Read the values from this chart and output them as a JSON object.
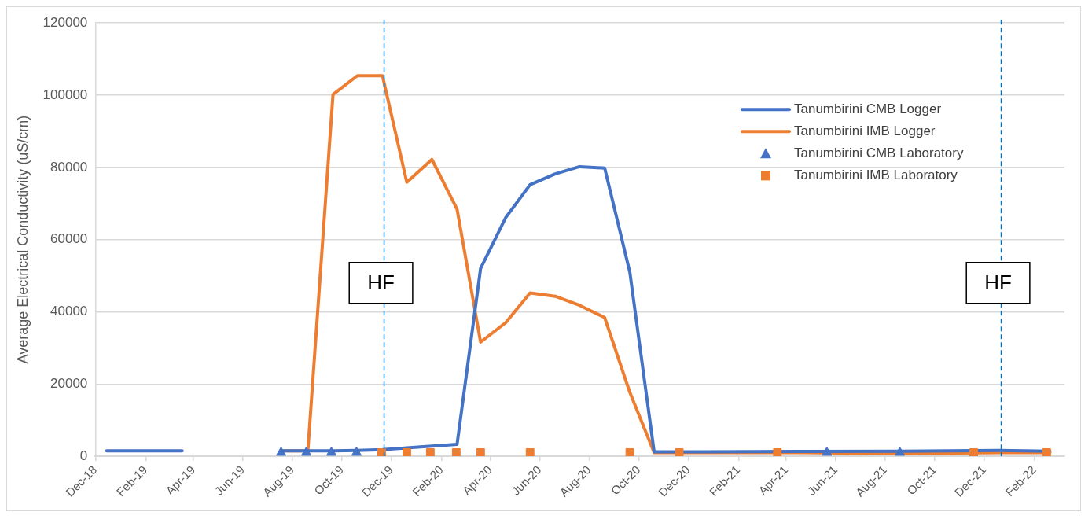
{
  "chart_data": {
    "type": "line",
    "ylabel": "Average Electrical Conductivity (uS/cm)",
    "xlim": [
      "2018-12-01",
      "2022-03-10"
    ],
    "ylim": [
      0,
      120000
    ],
    "yticks": [
      0,
      20000,
      40000,
      60000,
      80000,
      100000,
      120000
    ],
    "xticks": [
      {
        "value": "2018-12-01",
        "label": "Dec-18"
      },
      {
        "value": "2019-02-01",
        "label": "Feb-19"
      },
      {
        "value": "2019-04-01",
        "label": "Apr-19"
      },
      {
        "value": "2019-06-01",
        "label": "Jun-19"
      },
      {
        "value": "2019-08-01",
        "label": "Aug-19"
      },
      {
        "value": "2019-10-01",
        "label": "Oct-19"
      },
      {
        "value": "2019-12-01",
        "label": "Dec-19"
      },
      {
        "value": "2020-02-01",
        "label": "Feb-20"
      },
      {
        "value": "2020-04-01",
        "label": "Apr-20"
      },
      {
        "value": "2020-06-01",
        "label": "Jun-20"
      },
      {
        "value": "2020-08-01",
        "label": "Aug-20"
      },
      {
        "value": "2020-10-01",
        "label": "Oct-20"
      },
      {
        "value": "2020-12-01",
        "label": "Dec-20"
      },
      {
        "value": "2021-02-01",
        "label": "Feb-21"
      },
      {
        "value": "2021-04-01",
        "label": "Apr-21"
      },
      {
        "value": "2021-06-01",
        "label": "Jun-21"
      },
      {
        "value": "2021-08-01",
        "label": "Aug-21"
      },
      {
        "value": "2021-10-01",
        "label": "Oct-21"
      },
      {
        "value": "2021-12-01",
        "label": "Dec-21"
      },
      {
        "value": "2022-02-01",
        "label": "Feb-22"
      }
    ],
    "grid": "y",
    "legend": "top right",
    "series": [
      {
        "name": "Tanumbirini CMB Logger",
        "type": "line",
        "marker": "none",
        "line_style": "solid",
        "color": "#4472c4",
        "x": [
          "2018-12-15",
          "2019-01-15",
          "2019-02-15",
          "2019-03-18",
          "2019-05-20",
          "2019-07-20",
          "2019-08-20",
          "2019-09-20",
          "2019-10-20",
          "2019-11-20",
          "2019-12-20",
          "2020-01-20",
          "2020-02-20",
          "2020-03-20",
          "2020-04-20",
          "2020-05-20",
          "2020-06-20",
          "2020-07-20",
          "2020-08-20",
          "2020-09-20",
          "2020-10-20",
          "2020-12-20",
          "2021-04-20",
          "2021-08-20",
          "2021-12-20",
          "2022-02-20"
        ],
        "values": [
          1500,
          1500,
          1500,
          1500,
          null,
          1500,
          1500,
          1500,
          1600,
          1800,
          2300,
          2800,
          3300,
          52000,
          66100,
          75200,
          78200,
          80200,
          79800,
          51000,
          1200,
          1200,
          1300,
          1400,
          1600,
          1400
        ]
      },
      {
        "name": "Tanumbirini IMB Logger",
        "type": "line",
        "marker": "none",
        "line_style": "solid",
        "color": "#ed7d31",
        "x": [
          "2019-07-20",
          "2019-08-20",
          "2019-09-20",
          "2019-10-20",
          "2019-11-20",
          "2019-12-20",
          "2020-01-20",
          "2020-02-20",
          "2020-03-20",
          "2020-04-20",
          "2020-05-20",
          "2020-06-20",
          "2020-07-20",
          "2020-08-20",
          "2020-09-20",
          "2020-10-20",
          "2020-12-20",
          "2021-04-20",
          "2021-08-20",
          "2021-12-20",
          "2022-02-20"
        ],
        "values": [
          1500,
          1500,
          100200,
          105400,
          105400,
          75900,
          82200,
          68400,
          31600,
          37000,
          45200,
          44300,
          41800,
          38400,
          17700,
          1000,
          1000,
          1000,
          700,
          1000,
          1000
        ]
      },
      {
        "name": "Tanumbirini CMB Laboratory",
        "type": "scatter",
        "marker": "triangle",
        "color": "#4472c4",
        "x": [
          "2019-07-18",
          "2019-08-18",
          "2019-09-18",
          "2019-10-19",
          "2021-05-21",
          "2021-08-19"
        ],
        "values": [
          1000,
          1000,
          1000,
          1000,
          1000,
          1000
        ]
      },
      {
        "name": "Tanumbirini IMB Laboratory",
        "type": "scatter",
        "marker": "square",
        "color": "#ed7d31",
        "x": [
          "2019-11-19",
          "2019-12-20",
          "2020-01-18",
          "2020-02-19",
          "2020-03-20",
          "2020-05-20",
          "2020-09-20",
          "2020-11-20",
          "2021-03-21",
          "2021-11-18",
          "2022-02-16"
        ],
        "values": [
          1000,
          1000,
          1000,
          1000,
          1000,
          1000,
          1000,
          1000,
          1000,
          1000,
          1000
        ]
      }
    ],
    "ref_lines": [
      {
        "axis": "x",
        "value": "2019-11-22",
        "label": "HF",
        "color": "#0070c0",
        "line_style": "dashed"
      },
      {
        "axis": "x",
        "value": "2021-12-22",
        "label": "HF",
        "color": "#0070c0",
        "line_style": "dashed"
      }
    ]
  }
}
